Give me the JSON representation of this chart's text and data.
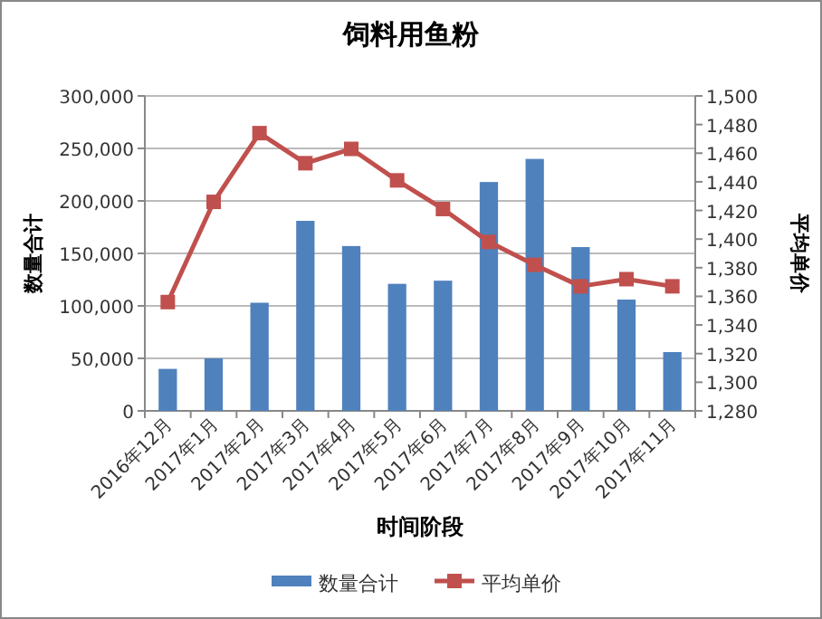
{
  "chart_data": {
    "type": "bar",
    "title": "饲料用鱼粉",
    "xlabel": "时间阶段",
    "ylabel": "数量合计",
    "y2label": "平均单价",
    "categories": [
      "2016年12月",
      "2017年1月",
      "2017年2月",
      "2017年3月",
      "2017年4月",
      "2017年5月",
      "2017年6月",
      "2017年7月",
      "2017年8月",
      "2017年9月",
      "2017年10月",
      "2017年11月"
    ],
    "series": [
      {
        "name": "数量合计",
        "color": "#4f81bd",
        "values": [
          40000,
          50000,
          103000,
          181000,
          157000,
          121000,
          124000,
          218000,
          240000,
          156000,
          106000,
          56000
        ]
      },
      {
        "name": "平均单价",
        "type": "line",
        "axis": "y2",
        "color": "#c0504d",
        "marker": "square",
        "values": [
          1356,
          1426,
          1474,
          1453,
          1463,
          1441,
          1421,
          1398,
          1382,
          1367,
          1372,
          1367
        ]
      }
    ],
    "ylim": [
      0,
      300000
    ],
    "yticks": [
      {
        "value": 0,
        "label": "0"
      },
      {
        "value": 50000,
        "label": "50,000"
      },
      {
        "value": 100000,
        "label": "100,000"
      },
      {
        "value": 150000,
        "label": "150,000"
      },
      {
        "value": 200000,
        "label": "200,000"
      },
      {
        "value": 250000,
        "label": "250,000"
      },
      {
        "value": 300000,
        "label": "300,000"
      }
    ],
    "y2lim": [
      1280,
      1500
    ],
    "y2ticks": [
      {
        "value": 1280,
        "label": "1,280"
      },
      {
        "value": 1300,
        "label": "1,300"
      },
      {
        "value": 1320,
        "label": "1,320"
      },
      {
        "value": 1340,
        "label": "1,340"
      },
      {
        "value": 1360,
        "label": "1,360"
      },
      {
        "value": 1380,
        "label": "1,380"
      },
      {
        "value": 1400,
        "label": "1,400"
      },
      {
        "value": 1420,
        "label": "1,420"
      },
      {
        "value": 1440,
        "label": "1,440"
      },
      {
        "value": 1460,
        "label": "1,460"
      },
      {
        "value": 1480,
        "label": "1,480"
      },
      {
        "value": 1500,
        "label": "1,500"
      }
    ],
    "grid": "y",
    "legend": "bottom"
  }
}
